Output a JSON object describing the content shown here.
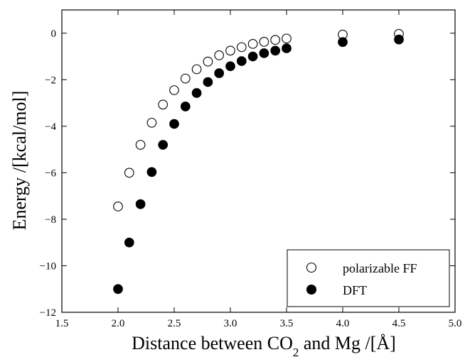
{
  "chart_data": {
    "type": "scatter",
    "x_label_parts": {
      "before": "Distance between CO",
      "subscript": "2",
      "after": " and Mg /[Å]"
    },
    "ylabel": "Energy /[kcal/mol]",
    "xlim": [
      1.5,
      5.0
    ],
    "ylim": [
      -12,
      1
    ],
    "x_ticks": [
      1.5,
      2.0,
      2.5,
      3.0,
      3.5,
      4.0,
      4.5,
      5.0
    ],
    "x_tick_labels": [
      "1.5",
      "2.0",
      "2.5",
      "3.0",
      "3.5",
      "4.0",
      "4.5",
      "5.0"
    ],
    "y_ticks": [
      -12,
      -10,
      -8,
      -6,
      -4,
      -2,
      0
    ],
    "y_tick_labels": [
      "−12",
      "−10",
      "−8",
      "−6",
      "−4",
      "−2",
      "0"
    ],
    "grid": false,
    "legend_position": "lower-right",
    "series": [
      {
        "name": "polarizable FF",
        "marker": "open-circle",
        "color": "#000000",
        "x": [
          2.0,
          2.1,
          2.2,
          2.3,
          2.4,
          2.5,
          2.6,
          2.7,
          2.8,
          2.9,
          3.0,
          3.1,
          3.2,
          3.3,
          3.4,
          3.5,
          4.0,
          4.5
        ],
        "y": [
          -7.45,
          -6.0,
          -4.8,
          -3.85,
          -3.07,
          -2.45,
          -1.95,
          -1.55,
          -1.22,
          -0.95,
          -0.75,
          -0.6,
          -0.46,
          -0.37,
          -0.29,
          -0.23,
          -0.06,
          -0.03
        ]
      },
      {
        "name": "DFT",
        "marker": "filled-circle",
        "color": "#000000",
        "x": [
          2.0,
          2.1,
          2.2,
          2.3,
          2.4,
          2.5,
          2.6,
          2.7,
          2.8,
          2.9,
          3.0,
          3.1,
          3.2,
          3.3,
          3.4,
          3.5,
          4.0,
          4.5
        ],
        "y": [
          -11.0,
          -9.0,
          -7.35,
          -5.97,
          -4.8,
          -3.9,
          -3.15,
          -2.57,
          -2.1,
          -1.72,
          -1.42,
          -1.2,
          -1.0,
          -0.86,
          -0.75,
          -0.65,
          -0.38,
          -0.27
        ]
      }
    ]
  }
}
